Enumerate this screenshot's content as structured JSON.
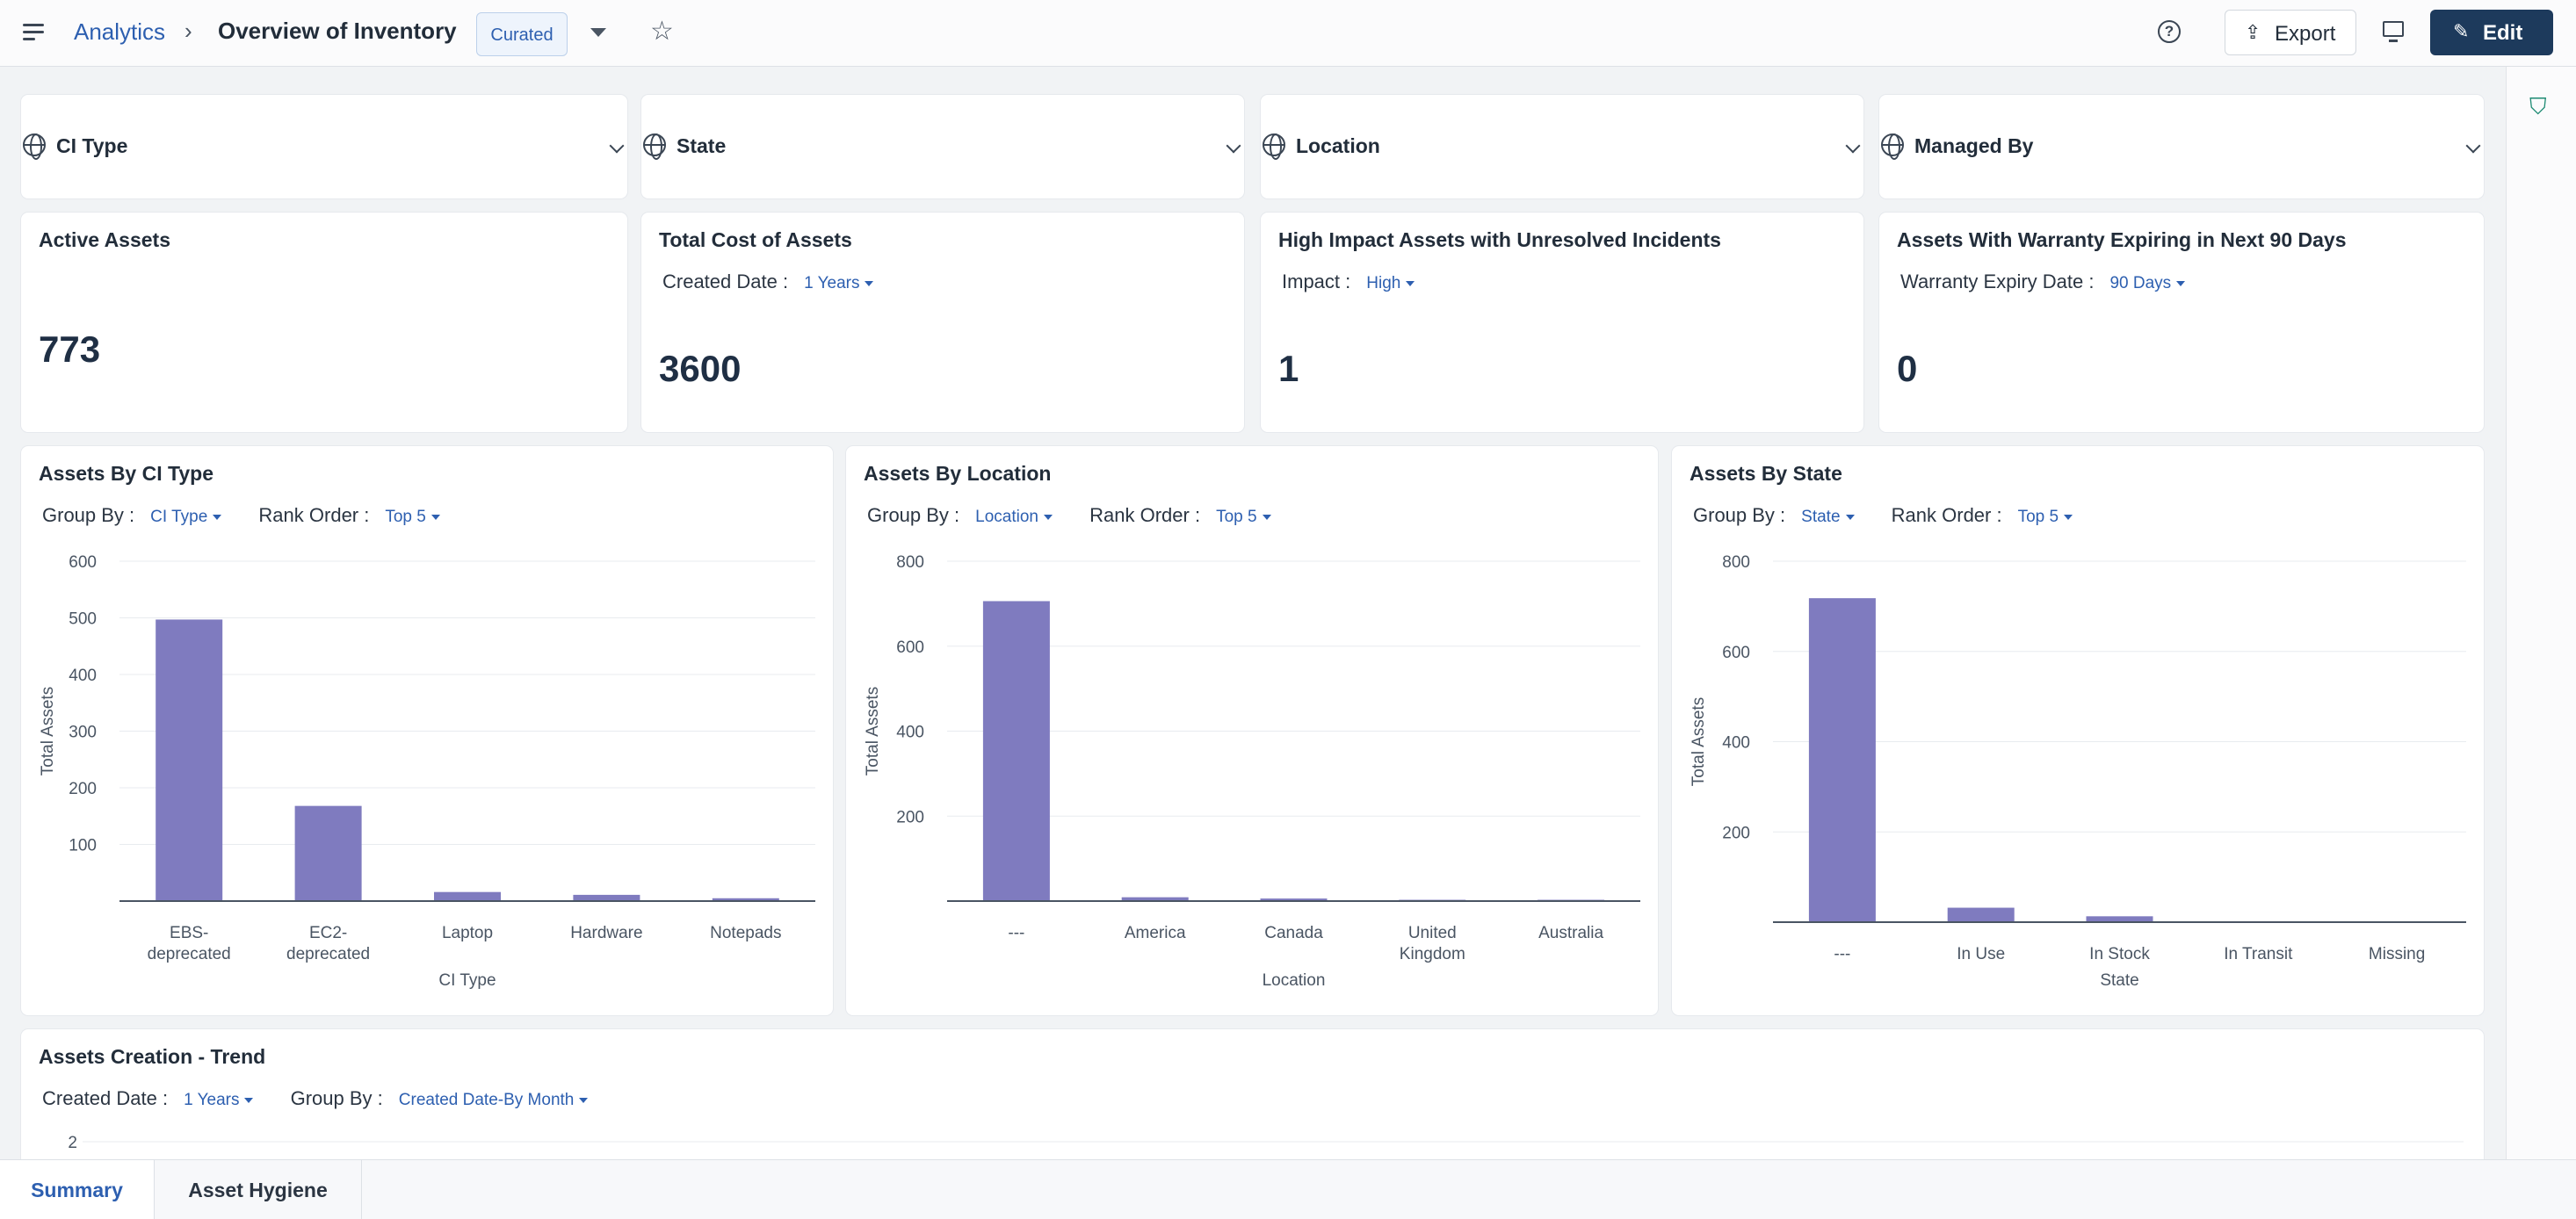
{
  "header": {
    "breadcrumb_root": "Analytics",
    "breadcrumb_sep": "›",
    "title": "Overview of Inventory",
    "badge": "Curated",
    "export_label": "Export",
    "edit_label": "Edit"
  },
  "filters": [
    {
      "label": "CI Type"
    },
    {
      "label": "State"
    },
    {
      "label": "Location"
    },
    {
      "label": "Managed By"
    }
  ],
  "kpis": [
    {
      "title": "Active Assets",
      "value": "773"
    },
    {
      "title": "Total Cost of Assets",
      "param_label": "Created Date :",
      "param_value": "1 Years",
      "value": "3600"
    },
    {
      "title": "High Impact Assets with Unresolved Incidents",
      "param_label": "Impact :",
      "param_value": "High",
      "value": "1"
    },
    {
      "title": "Assets With Warranty Expiring in Next 90 Days",
      "param_label": "Warranty Expiry Date :",
      "param_value": "90 Days",
      "value": "0"
    }
  ],
  "widgets": {
    "ci_type": {
      "title": "Assets By CI Type",
      "group_label": "Group By :",
      "group_value": "CI Type",
      "rank_label": "Rank Order :",
      "rank_value": "Top 5"
    },
    "location": {
      "title": "Assets By Location",
      "group_label": "Group By :",
      "group_value": "Location",
      "rank_label": "Rank Order :",
      "rank_value": "Top 5"
    },
    "state": {
      "title": "Assets By State",
      "group_label": "Group By :",
      "group_value": "State",
      "rank_label": "Rank Order :",
      "rank_value": "Top 5"
    },
    "trend": {
      "title": "Assets Creation - Trend",
      "date_label": "Created Date :",
      "date_value": "1 Years",
      "group_label": "Group By :",
      "group_value": "Created Date-By Month"
    }
  },
  "chart_data": [
    {
      "type": "bar",
      "categories": [
        [
          "EBS-",
          "deprecated"
        ],
        [
          "EC2-",
          "deprecated"
        ],
        [
          "Laptop"
        ],
        [
          "Hardware"
        ],
        [
          "Notepads"
        ]
      ],
      "values": [
        497,
        168,
        16,
        11,
        5
      ],
      "xlabel": "CI Type",
      "ylabel": "Total Assets",
      "ylim": [
        0,
        600
      ],
      "yticks": [
        100,
        200,
        300,
        400,
        500,
        600
      ],
      "color": "#7f7bbf"
    },
    {
      "type": "bar",
      "categories": [
        [
          "---"
        ],
        [
          "America"
        ],
        [
          "Canada"
        ],
        [
          "United",
          "Kingdom"
        ],
        [
          "Australia"
        ]
      ],
      "values": [
        706,
        9,
        6,
        3,
        3
      ],
      "xlabel": "Location",
      "ylabel": "Total Assets",
      "ylim": [
        0,
        800
      ],
      "yticks": [
        200,
        400,
        600,
        800
      ],
      "color": "#7f7bbf"
    },
    {
      "type": "bar",
      "categories": [
        [
          "---"
        ],
        [
          "In Use"
        ],
        [
          "In Stock"
        ],
        [
          "In Transit"
        ],
        [
          "Missing"
        ]
      ],
      "values": [
        718,
        32,
        13,
        2,
        1
      ],
      "xlabel": "State",
      "ylabel": "Total Assets",
      "ylim": [
        0,
        800
      ],
      "yticks": [
        200,
        400,
        600,
        800
      ],
      "color": "#7f7bbf"
    },
    {
      "type": "line",
      "xlabel": "",
      "ylabel": "",
      "yticks": [
        2
      ]
    }
  ],
  "tabs": [
    {
      "label": "Summary",
      "active": true
    },
    {
      "label": "Asset Hygiene",
      "active": false
    }
  ]
}
